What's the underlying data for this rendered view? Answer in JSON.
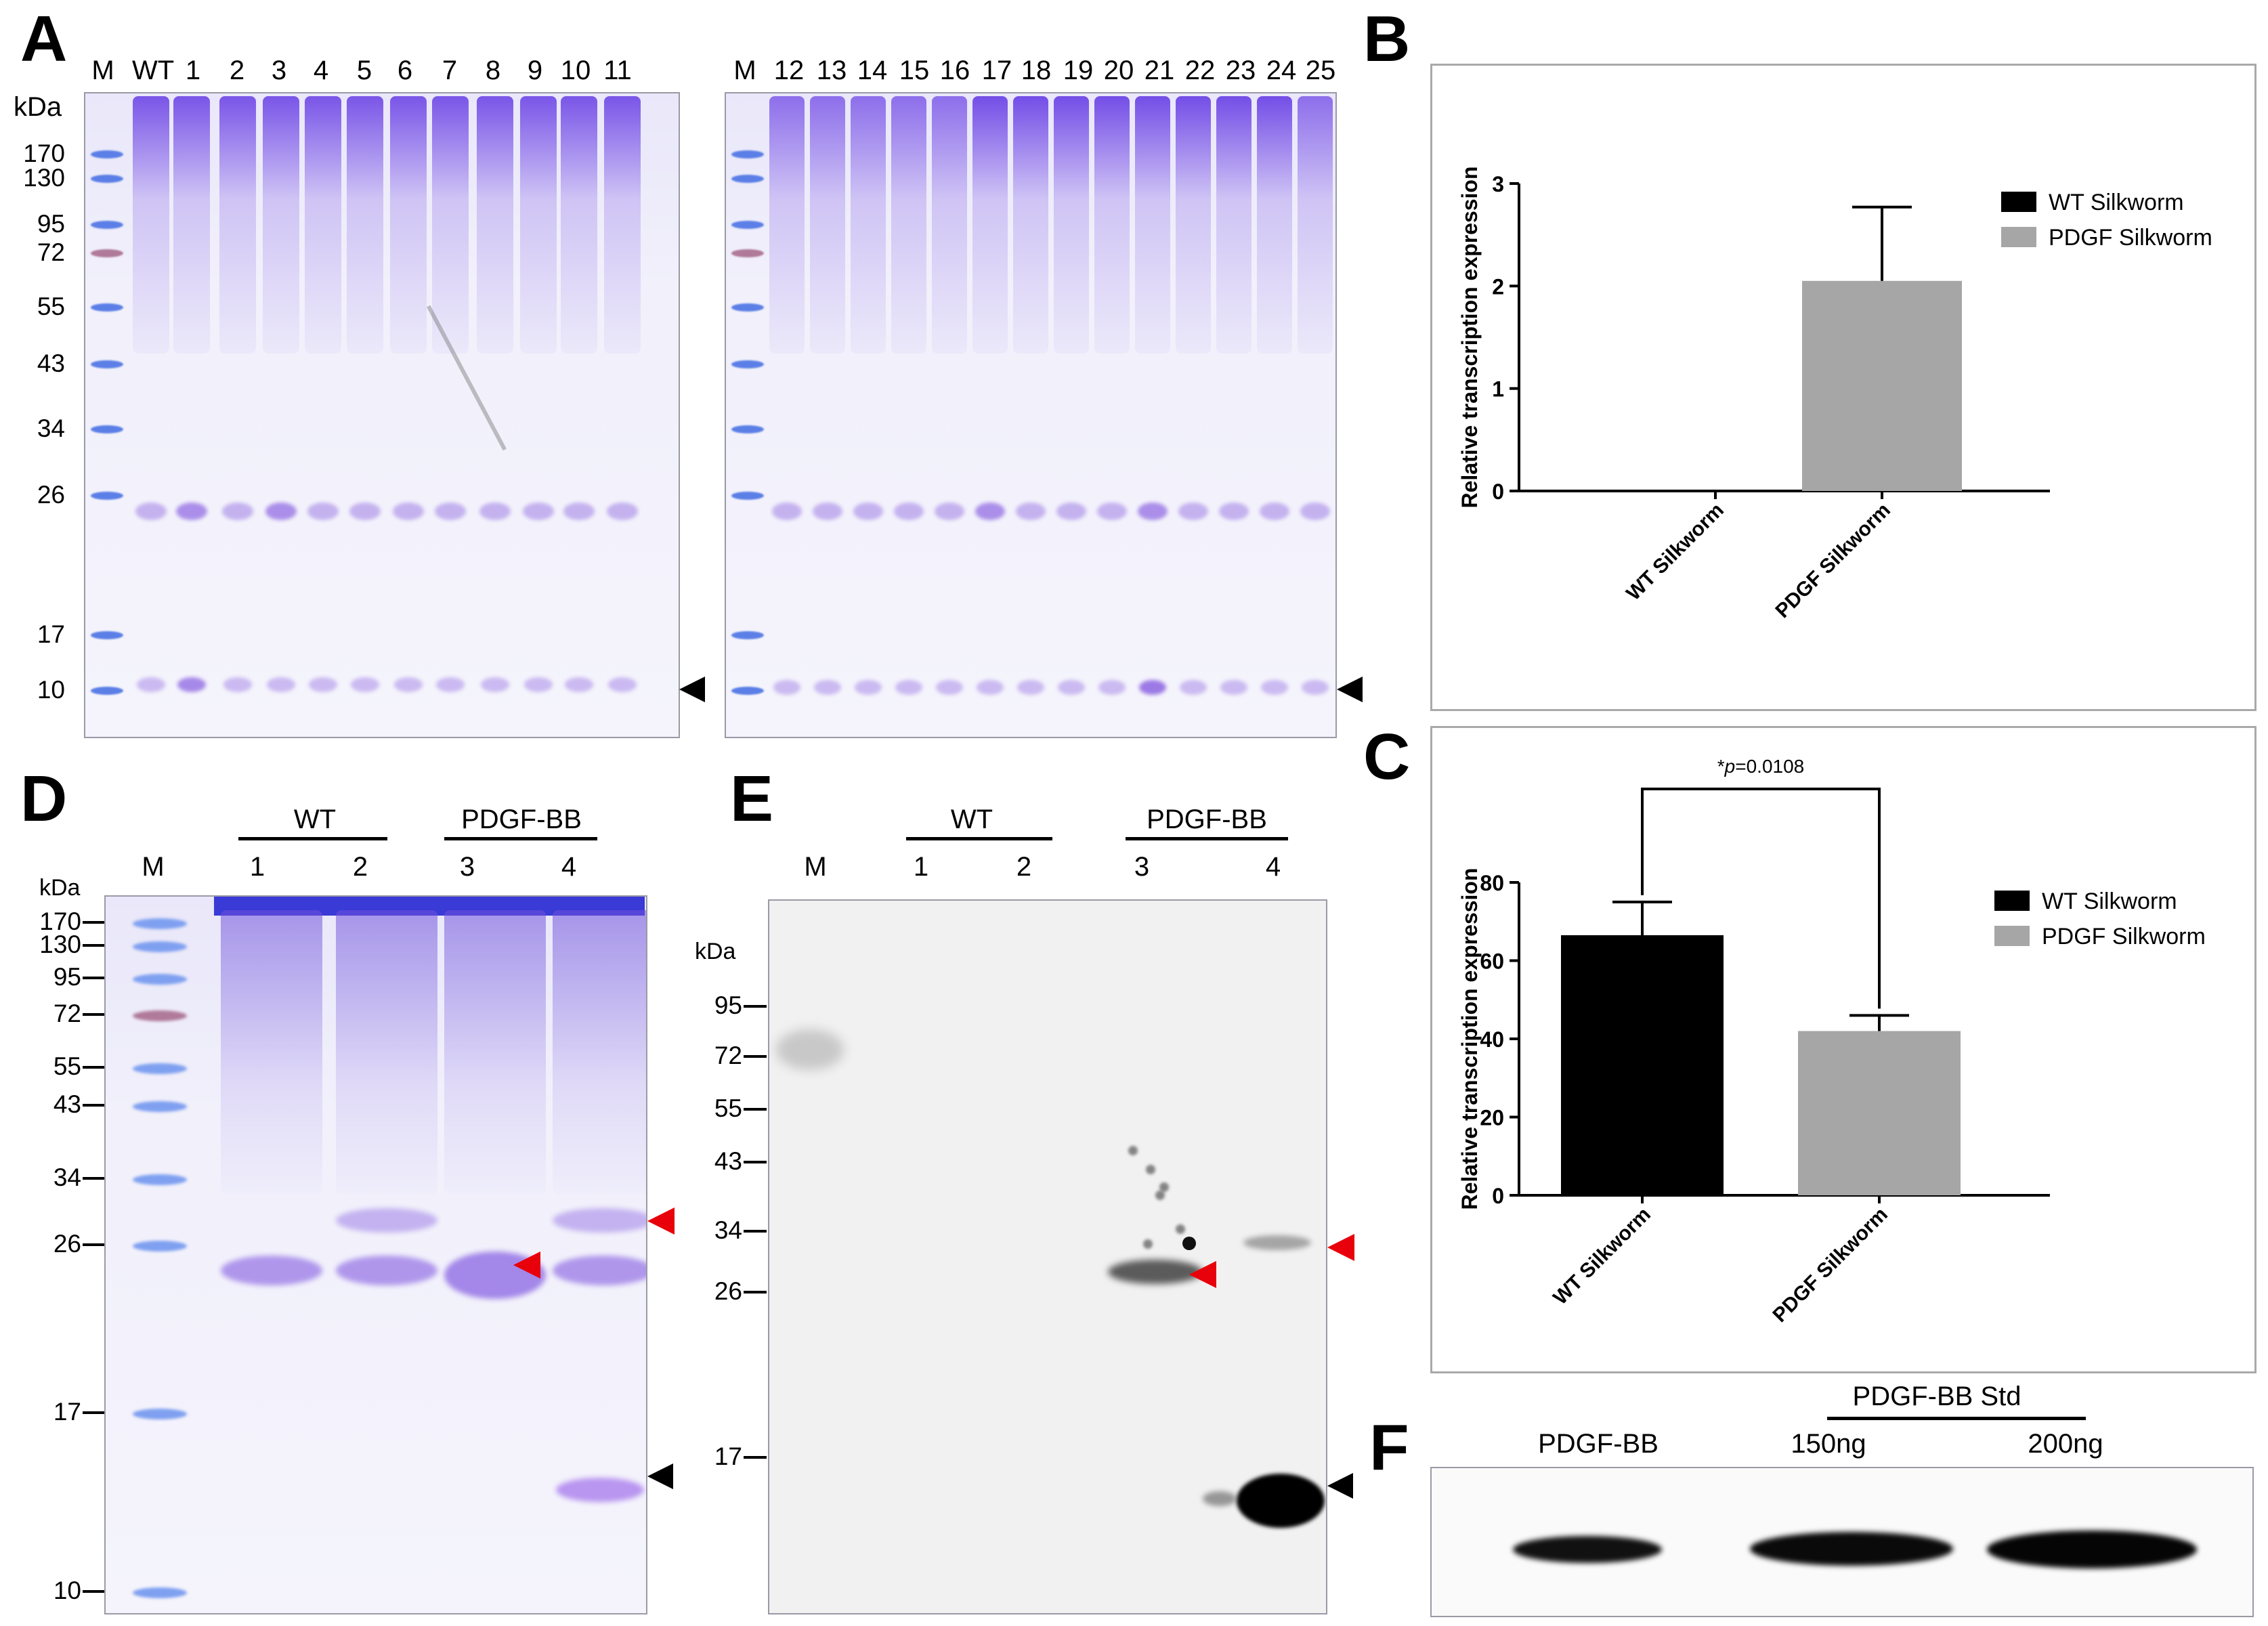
{
  "panels": {
    "A": {
      "label": "A",
      "kda_label": "kDa",
      "left_lanes": [
        "M",
        "WT",
        "1",
        "2",
        "3",
        "4",
        "5",
        "6",
        "7",
        "8",
        "9",
        "10",
        "11"
      ],
      "right_lanes": [
        "M",
        "12",
        "13",
        "14",
        "15",
        "16",
        "17",
        "18",
        "19",
        "20",
        "21",
        "22",
        "23",
        "24",
        "25"
      ],
      "mw_markers": [
        "170",
        "130",
        "95",
        "72",
        "55",
        "43",
        "34",
        "26",
        "17",
        "10"
      ]
    },
    "B": {
      "label": "B",
      "chart_data": {
        "type": "bar",
        "categories": [
          "WT Silkworm",
          "PDGF Silkworm"
        ],
        "values": [
          0,
          2.05
        ],
        "errors": [
          0,
          0.72
        ],
        "ylabel": "Relative transcription expression",
        "ylim": [
          0,
          3
        ],
        "yticks": [
          "0",
          "1",
          "2",
          "3"
        ],
        "legend": [
          {
            "name": "WT Silkworm",
            "color": "#000000"
          },
          {
            "name": "PDGF Silkworm",
            "color": "#a6a6a6"
          }
        ]
      }
    },
    "C": {
      "label": "C",
      "chart_data": {
        "type": "bar",
        "categories": [
          "WT Silkworm",
          "PDGF Silkworm"
        ],
        "values": [
          66.5,
          42
        ],
        "errors": [
          8.5,
          4
        ],
        "ylabel": "Relative transcription expression",
        "ylim": [
          0,
          80
        ],
        "yticks": [
          "0",
          "20",
          "40",
          "60",
          "80"
        ],
        "significance_prefix": "*",
        "significance_p": "p",
        "significance_value": "=0.0108",
        "legend": [
          {
            "name": "WT Silkworm",
            "color": "#000000"
          },
          {
            "name": "PDGF Silkworm",
            "color": "#a6a6a6"
          }
        ]
      }
    },
    "D": {
      "label": "D",
      "kda_label": "kDa",
      "group_wt": "WT",
      "group_pdgf": "PDGF-BB",
      "lanes": [
        "M",
        "1",
        "2",
        "3",
        "4"
      ],
      "mw_markers": [
        "170",
        "130",
        "95",
        "72",
        "55",
        "43",
        "34",
        "26",
        "17",
        "10"
      ]
    },
    "E": {
      "label": "E",
      "kda_label": "kDa",
      "group_wt": "WT",
      "group_pdgf": "PDGF-BB",
      "lanes": [
        "M",
        "1",
        "2",
        "3",
        "4"
      ],
      "mw_markers": [
        "95",
        "72",
        "55",
        "43",
        "34",
        "26",
        "17"
      ]
    },
    "F": {
      "label": "F",
      "std_header": "PDGF-BB Std",
      "lanes": [
        "PDGF-BB",
        "150ng",
        "200ng"
      ]
    }
  },
  "colors": {
    "stain_band": "#a38ae6",
    "marker_blue": "#5b7fe6",
    "arrow_red": "#e8000b",
    "bar_wt": "#000000",
    "bar_pdgf": "#a6a6a6"
  }
}
